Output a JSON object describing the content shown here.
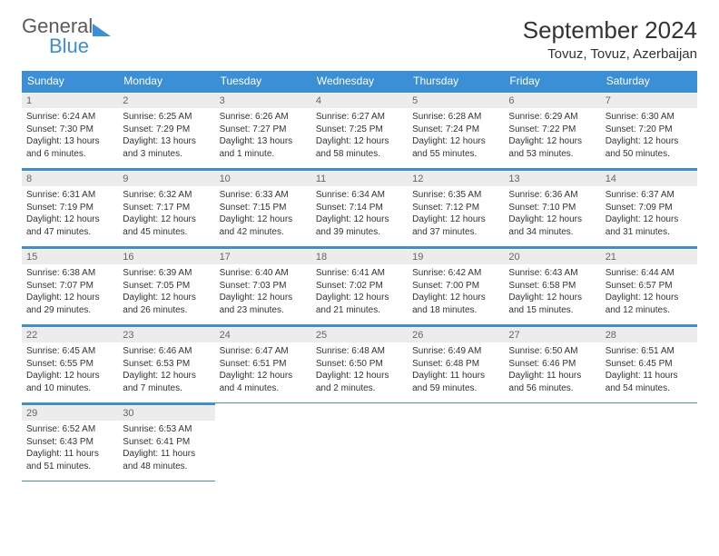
{
  "logo": {
    "text1": "General",
    "text2": "Blue"
  },
  "header": {
    "month_title": "September 2024",
    "location": "Tovuz, Tovuz, Azerbaijan"
  },
  "colors": {
    "accent": "#3b8fd6",
    "daynum_bg": "#ececec",
    "text": "#333333"
  },
  "calendar": {
    "day_headers": [
      "Sunday",
      "Monday",
      "Tuesday",
      "Wednesday",
      "Thursday",
      "Friday",
      "Saturday"
    ],
    "weeks": [
      [
        {
          "num": "1",
          "sunrise": "Sunrise: 6:24 AM",
          "sunset": "Sunset: 7:30 PM",
          "daylight": "Daylight: 13 hours and 6 minutes."
        },
        {
          "num": "2",
          "sunrise": "Sunrise: 6:25 AM",
          "sunset": "Sunset: 7:29 PM",
          "daylight": "Daylight: 13 hours and 3 minutes."
        },
        {
          "num": "3",
          "sunrise": "Sunrise: 6:26 AM",
          "sunset": "Sunset: 7:27 PM",
          "daylight": "Daylight: 13 hours and 1 minute."
        },
        {
          "num": "4",
          "sunrise": "Sunrise: 6:27 AM",
          "sunset": "Sunset: 7:25 PM",
          "daylight": "Daylight: 12 hours and 58 minutes."
        },
        {
          "num": "5",
          "sunrise": "Sunrise: 6:28 AM",
          "sunset": "Sunset: 7:24 PM",
          "daylight": "Daylight: 12 hours and 55 minutes."
        },
        {
          "num": "6",
          "sunrise": "Sunrise: 6:29 AM",
          "sunset": "Sunset: 7:22 PM",
          "daylight": "Daylight: 12 hours and 53 minutes."
        },
        {
          "num": "7",
          "sunrise": "Sunrise: 6:30 AM",
          "sunset": "Sunset: 7:20 PM",
          "daylight": "Daylight: 12 hours and 50 minutes."
        }
      ],
      [
        {
          "num": "8",
          "sunrise": "Sunrise: 6:31 AM",
          "sunset": "Sunset: 7:19 PM",
          "daylight": "Daylight: 12 hours and 47 minutes."
        },
        {
          "num": "9",
          "sunrise": "Sunrise: 6:32 AM",
          "sunset": "Sunset: 7:17 PM",
          "daylight": "Daylight: 12 hours and 45 minutes."
        },
        {
          "num": "10",
          "sunrise": "Sunrise: 6:33 AM",
          "sunset": "Sunset: 7:15 PM",
          "daylight": "Daylight: 12 hours and 42 minutes."
        },
        {
          "num": "11",
          "sunrise": "Sunrise: 6:34 AM",
          "sunset": "Sunset: 7:14 PM",
          "daylight": "Daylight: 12 hours and 39 minutes."
        },
        {
          "num": "12",
          "sunrise": "Sunrise: 6:35 AM",
          "sunset": "Sunset: 7:12 PM",
          "daylight": "Daylight: 12 hours and 37 minutes."
        },
        {
          "num": "13",
          "sunrise": "Sunrise: 6:36 AM",
          "sunset": "Sunset: 7:10 PM",
          "daylight": "Daylight: 12 hours and 34 minutes."
        },
        {
          "num": "14",
          "sunrise": "Sunrise: 6:37 AM",
          "sunset": "Sunset: 7:09 PM",
          "daylight": "Daylight: 12 hours and 31 minutes."
        }
      ],
      [
        {
          "num": "15",
          "sunrise": "Sunrise: 6:38 AM",
          "sunset": "Sunset: 7:07 PM",
          "daylight": "Daylight: 12 hours and 29 minutes."
        },
        {
          "num": "16",
          "sunrise": "Sunrise: 6:39 AM",
          "sunset": "Sunset: 7:05 PM",
          "daylight": "Daylight: 12 hours and 26 minutes."
        },
        {
          "num": "17",
          "sunrise": "Sunrise: 6:40 AM",
          "sunset": "Sunset: 7:03 PM",
          "daylight": "Daylight: 12 hours and 23 minutes."
        },
        {
          "num": "18",
          "sunrise": "Sunrise: 6:41 AM",
          "sunset": "Sunset: 7:02 PM",
          "daylight": "Daylight: 12 hours and 21 minutes."
        },
        {
          "num": "19",
          "sunrise": "Sunrise: 6:42 AM",
          "sunset": "Sunset: 7:00 PM",
          "daylight": "Daylight: 12 hours and 18 minutes."
        },
        {
          "num": "20",
          "sunrise": "Sunrise: 6:43 AM",
          "sunset": "Sunset: 6:58 PM",
          "daylight": "Daylight: 12 hours and 15 minutes."
        },
        {
          "num": "21",
          "sunrise": "Sunrise: 6:44 AM",
          "sunset": "Sunset: 6:57 PM",
          "daylight": "Daylight: 12 hours and 12 minutes."
        }
      ],
      [
        {
          "num": "22",
          "sunrise": "Sunrise: 6:45 AM",
          "sunset": "Sunset: 6:55 PM",
          "daylight": "Daylight: 12 hours and 10 minutes."
        },
        {
          "num": "23",
          "sunrise": "Sunrise: 6:46 AM",
          "sunset": "Sunset: 6:53 PM",
          "daylight": "Daylight: 12 hours and 7 minutes."
        },
        {
          "num": "24",
          "sunrise": "Sunrise: 6:47 AM",
          "sunset": "Sunset: 6:51 PM",
          "daylight": "Daylight: 12 hours and 4 minutes."
        },
        {
          "num": "25",
          "sunrise": "Sunrise: 6:48 AM",
          "sunset": "Sunset: 6:50 PM",
          "daylight": "Daylight: 12 hours and 2 minutes."
        },
        {
          "num": "26",
          "sunrise": "Sunrise: 6:49 AM",
          "sunset": "Sunset: 6:48 PM",
          "daylight": "Daylight: 11 hours and 59 minutes."
        },
        {
          "num": "27",
          "sunrise": "Sunrise: 6:50 AM",
          "sunset": "Sunset: 6:46 PM",
          "daylight": "Daylight: 11 hours and 56 minutes."
        },
        {
          "num": "28",
          "sunrise": "Sunrise: 6:51 AM",
          "sunset": "Sunset: 6:45 PM",
          "daylight": "Daylight: 11 hours and 54 minutes."
        }
      ],
      [
        {
          "num": "29",
          "sunrise": "Sunrise: 6:52 AM",
          "sunset": "Sunset: 6:43 PM",
          "daylight": "Daylight: 11 hours and 51 minutes."
        },
        {
          "num": "30",
          "sunrise": "Sunrise: 6:53 AM",
          "sunset": "Sunset: 6:41 PM",
          "daylight": "Daylight: 11 hours and 48 minutes."
        },
        null,
        null,
        null,
        null,
        null
      ]
    ]
  }
}
